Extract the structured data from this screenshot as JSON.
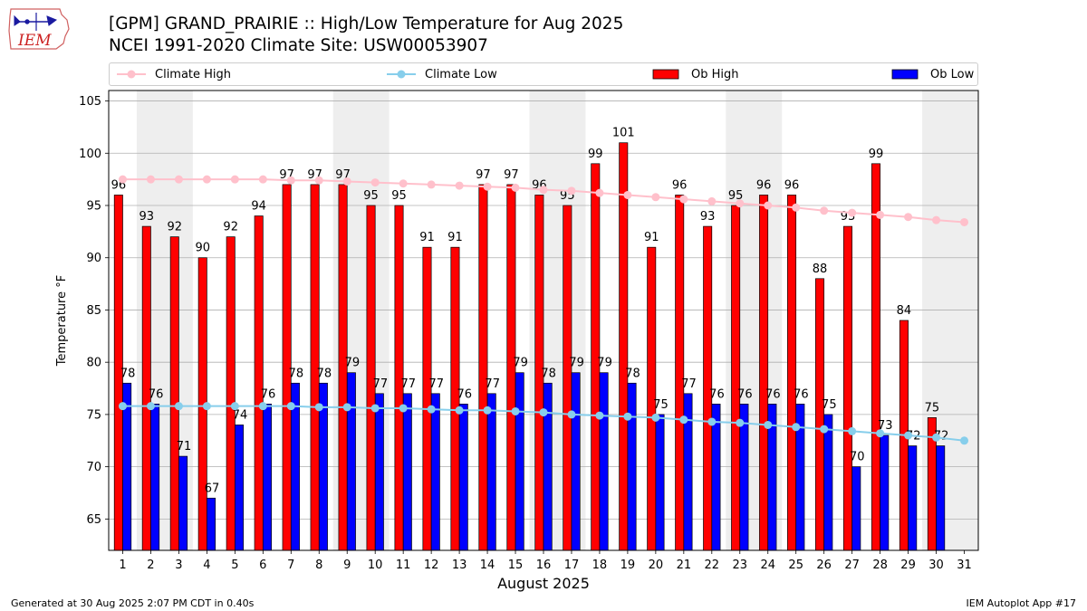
{
  "header": {
    "title": "[GPM] GRAND_PRAIRIE :: High/Low Temperature for Aug 2025",
    "subtitle": "NCEI 1991-2020 Climate Site: USW00053907"
  },
  "logo": {
    "text": "IEM",
    "icon": "iowa-state-map-logo"
  },
  "legend": {
    "items": [
      {
        "label": "Climate High",
        "kind": "line",
        "color": "#ffc0cb"
      },
      {
        "label": "Climate Low",
        "kind": "line",
        "color": "#87ceeb"
      },
      {
        "label": "Ob High",
        "kind": "bar",
        "color": "#ff0000"
      },
      {
        "label": "Ob Low",
        "kind": "bar",
        "color": "#0000ff"
      }
    ]
  },
  "footer": {
    "generated": "Generated at 30 Aug 2025 2:07 PM CDT in 0.40s",
    "app": "IEM Autoplot App #17"
  },
  "chart_data": {
    "type": "bar",
    "xlabel": "August 2025",
    "ylabel": "Temperature °F",
    "ylim": [
      62,
      106
    ],
    "yticks": [
      65,
      70,
      75,
      80,
      85,
      90,
      95,
      100,
      105
    ],
    "grid": "horizontal",
    "weekend_shading": [
      [
        2,
        3
      ],
      [
        9,
        10
      ],
      [
        16,
        17
      ],
      [
        23,
        24
      ],
      [
        30,
        31
      ]
    ],
    "categories": [
      "1",
      "2",
      "3",
      "4",
      "5",
      "6",
      "7",
      "8",
      "9",
      "10",
      "11",
      "12",
      "13",
      "14",
      "15",
      "16",
      "17",
      "18",
      "19",
      "20",
      "21",
      "22",
      "23",
      "24",
      "25",
      "26",
      "27",
      "28",
      "29",
      "30",
      "31"
    ],
    "series": [
      {
        "name": "Ob High",
        "type": "bar",
        "color": "#ff0000",
        "values": [
          96,
          93,
          92,
          90,
          92,
          94,
          97,
          97,
          97,
          95,
          95,
          91,
          91,
          97,
          97,
          96,
          95,
          99,
          101,
          91,
          96,
          93,
          95,
          96,
          96,
          88,
          93,
          99,
          84,
          74.7,
          null
        ],
        "labels": [
          "96",
          "93",
          "92",
          "90",
          "92",
          "94",
          "97",
          "97",
          "97",
          "95",
          "95",
          "91",
          "91",
          "97",
          "97",
          "96",
          "95",
          "99",
          "101",
          "91",
          "96",
          "93",
          "95",
          "96",
          "96",
          "88",
          "93",
          "99",
          "84",
          "75",
          ""
        ]
      },
      {
        "name": "Ob Low",
        "type": "bar",
        "color": "#0000ff",
        "values": [
          78,
          76,
          71,
          67,
          74,
          76,
          78,
          78,
          79,
          77,
          77,
          77,
          76,
          77,
          79,
          78,
          79,
          79,
          78,
          75,
          77,
          76,
          76,
          76,
          76,
          75,
          70,
          73,
          72,
          72,
          null
        ],
        "labels": [
          "78",
          "76",
          "71",
          "67",
          "74",
          "76",
          "78",
          "78",
          "79",
          "77",
          "77",
          "77",
          "76",
          "77",
          "79",
          "78",
          "79",
          "79",
          "78",
          "75",
          "77",
          "76",
          "76",
          "76",
          "76",
          "75",
          "70",
          "73",
          "72",
          "72",
          ""
        ]
      },
      {
        "name": "Climate High",
        "type": "line",
        "color": "#ffc0cb",
        "values": [
          97.5,
          97.5,
          97.5,
          97.5,
          97.5,
          97.5,
          97.4,
          97.4,
          97.3,
          97.2,
          97.1,
          97.0,
          96.9,
          96.8,
          96.7,
          96.5,
          96.4,
          96.2,
          96.0,
          95.8,
          95.6,
          95.4,
          95.2,
          95.0,
          94.8,
          94.5,
          94.3,
          94.1,
          93.9,
          93.6,
          93.4
        ]
      },
      {
        "name": "Climate Low",
        "type": "line",
        "color": "#87ceeb",
        "values": [
          75.8,
          75.8,
          75.8,
          75.8,
          75.8,
          75.8,
          75.8,
          75.7,
          75.7,
          75.6,
          75.6,
          75.5,
          75.4,
          75.4,
          75.3,
          75.2,
          75.0,
          74.9,
          74.8,
          74.7,
          74.5,
          74.3,
          74.2,
          74.0,
          73.8,
          73.6,
          73.4,
          73.2,
          73.0,
          72.8,
          72.5
        ]
      }
    ]
  }
}
